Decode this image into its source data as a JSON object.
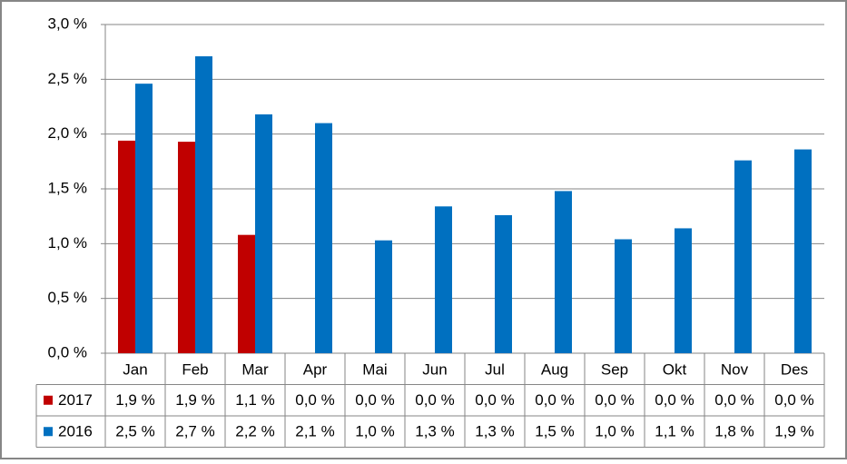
{
  "chart_data": {
    "type": "bar",
    "categories": [
      "Jan",
      "Feb",
      "Mar",
      "Apr",
      "Mai",
      "Jun",
      "Jul",
      "Aug",
      "Sep",
      "Okt",
      "Nov",
      "Des"
    ],
    "series": [
      {
        "name": "2017",
        "color": "#c00000",
        "values": [
          1.94,
          1.93,
          1.08,
          0,
          0,
          0,
          0,
          0,
          0,
          0,
          0,
          0
        ],
        "value_labels": [
          "1,9 %",
          "1,9 %",
          "1,1 %",
          "0,0 %",
          "0,0 %",
          "0,0 %",
          "0,0 %",
          "0,0 %",
          "0,0 %",
          "0,0 %",
          "0,0 %",
          "0,0 %"
        ]
      },
      {
        "name": "2016",
        "color": "#0070c0",
        "values": [
          2.46,
          2.71,
          2.18,
          2.1,
          1.03,
          1.34,
          1.26,
          1.48,
          1.04,
          1.14,
          1.76,
          1.86
        ],
        "value_labels": [
          "2,5 %",
          "2,7 %",
          "2,2 %",
          "2,1 %",
          "1,0 %",
          "1,3 %",
          "1,3 %",
          "1,5 %",
          "1,0 %",
          "1,1 %",
          "1,8 %",
          "1,9 %"
        ]
      }
    ],
    "ylim": [
      0,
      3
    ],
    "yticks": [
      {
        "value": 0,
        "label": "0,0 %"
      },
      {
        "value": 0.5,
        "label": "0,5 %"
      },
      {
        "value": 1,
        "label": "1,0 %"
      },
      {
        "value": 1.5,
        "label": "1,5 %"
      },
      {
        "value": 2,
        "label": "2,0 %"
      },
      {
        "value": 2.5,
        "label": "2,5 %"
      },
      {
        "value": 3,
        "label": "3,0 %"
      }
    ],
    "grid": true
  }
}
